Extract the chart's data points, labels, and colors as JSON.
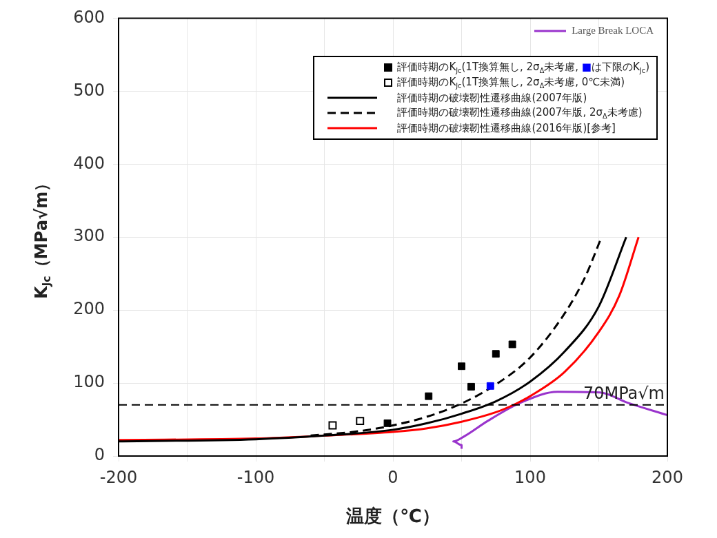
{
  "chart_data": {
    "type": "scatter",
    "xlabel": "温度（℃）",
    "ylabel": "K$_{Jc}$（MPa√m）",
    "xlim": [
      -200,
      200
    ],
    "xticks": [
      -200,
      {
        "value": -150,
        "label": null
      },
      -100,
      {
        "value": -50,
        "label": null
      },
      0,
      {
        "value": 50,
        "label": null
      },
      100,
      {
        "value": 150,
        "label": null
      },
      200
    ],
    "ylim": [
      0,
      600
    ],
    "yticks": [
      0,
      100,
      200,
      300,
      400,
      500,
      600
    ],
    "grid": true,
    "legend": "top right",
    "ref_lines": [
      {
        "axis": "y",
        "value": 70,
        "label": "70MPa√m",
        "color": "#000000",
        "line_style": "dashed"
      }
    ],
    "series": [
      {
        "name": "評価時期のK$_{Jc}$(1T換算無し, 2σ$_{Δ}$未考慮, ■は下限のK$_{Jc}$)",
        "type": "scatter",
        "marker": "square",
        "color": "#000000",
        "x": [
          -4,
          26,
          50,
          57,
          71,
          75,
          87
        ],
        "values": [
          45,
          82,
          123,
          95,
          96,
          140,
          153
        ],
        "colors": [
          "#000000",
          "#000000",
          "#000000",
          "#000000",
          "#0000ff",
          "#000000",
          "#000000"
        ]
      },
      {
        "name": "評価時期のK$_{Jc}$(1T換算無し, 2σ$_{Δ}$未考慮, 0℃未満)",
        "type": "scatter",
        "marker": "square",
        "color": "#000000",
        "x": [
          -44,
          -24
        ],
        "values": [
          42,
          48
        ]
      },
      {
        "name": "評価時期の破壊靭性遷移曲線(2007年版)",
        "type": "line",
        "marker": "none",
        "line_style": "solid",
        "color": "#000000",
        "x": [
          -200,
          -100,
          -50,
          0,
          25,
          50,
          75,
          100,
          125,
          150,
          170
        ],
        "values": [
          20,
          23,
          28,
          36,
          45,
          58,
          75,
          102,
          143,
          205,
          300
        ]
      },
      {
        "name": "評価時期の破壊靭性遷移曲線(2007年版, 2σ$_{Δ}$未考慮)",
        "type": "line",
        "marker": "none",
        "line_style": "dashed",
        "color": "#000000",
        "x": [
          -60,
          -25,
          0,
          25,
          50,
          75,
          100,
          125,
          140,
          152
        ],
        "values": [
          28,
          34,
          42,
          54,
          72,
          98,
          135,
          195,
          245,
          300
        ]
      },
      {
        "name": "評価時期の破壊靭性遷移曲線(2016年版)[参考]",
        "type": "line",
        "marker": "none",
        "line_style": "solid",
        "color": "#ff0000",
        "x": [
          -200,
          -100,
          -50,
          0,
          25,
          50,
          75,
          90,
          100,
          125,
          150,
          165,
          179
        ],
        "values": [
          22,
          24,
          28,
          33,
          38,
          47,
          60,
          72,
          82,
          115,
          170,
          220,
          300
        ]
      },
      {
        "name": "Large Break LOCA",
        "type": "line",
        "marker": "none",
        "line_style": "solid",
        "color": "#9933cc",
        "x": [
          50,
          50,
          44,
          52,
          69,
          93,
          120,
          151,
          171,
          200
        ],
        "values": [
          10,
          15,
          20,
          27,
          48,
          73,
          88,
          87,
          73,
          56
        ]
      }
    ]
  }
}
